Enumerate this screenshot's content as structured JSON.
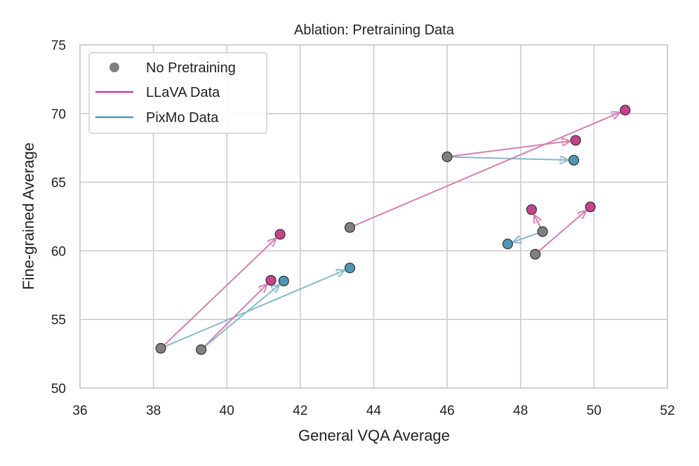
{
  "chart_data": {
    "type": "scatter",
    "title": "Ablation: Pretraining Data",
    "xlabel": "General VQA Average",
    "ylabel": "Fine-grained Average",
    "xlim": [
      36,
      52
    ],
    "ylim": [
      50,
      75
    ],
    "xticks": [
      36,
      38,
      40,
      42,
      44,
      46,
      48,
      50,
      52
    ],
    "yticks": [
      50,
      55,
      60,
      65,
      70,
      75
    ],
    "grid": true,
    "legend_position": "top-left",
    "colors": {
      "none": "#808080",
      "llava": "#c4438b",
      "pixmo": "#4f97b4",
      "llava_arrow": "#d57fb1",
      "pixmo_arrow": "#86b8cc"
    },
    "legend": [
      {
        "label": "No Pretraining",
        "kind": "marker",
        "color_key": "none"
      },
      {
        "label": "LLaVA Data",
        "kind": "line",
        "color_key": "llava"
      },
      {
        "label": "PixMo Data",
        "kind": "line",
        "color_key": "pixmo"
      }
    ],
    "groups": [
      {
        "base": [
          38.2,
          52.9
        ],
        "llava": [
          41.45,
          61.2
        ],
        "pixmo": [
          43.35,
          58.75
        ]
      },
      {
        "base": [
          39.3,
          52.8
        ],
        "llava": [
          41.2,
          57.85
        ],
        "pixmo": [
          41.55,
          57.8
        ]
      },
      {
        "base": [
          46.0,
          66.85
        ],
        "llava": [
          49.5,
          68.05
        ],
        "pixmo": [
          49.45,
          66.6
        ]
      },
      {
        "base": [
          43.35,
          61.7
        ],
        "llava": [
          50.85,
          70.25
        ]
      },
      {
        "base": [
          48.6,
          61.4
        ],
        "llava": [
          48.3,
          63.0
        ],
        "pixmo": [
          47.65,
          60.5
        ]
      },
      {
        "base": [
          48.4,
          59.75
        ],
        "llava": [
          49.9,
          63.2
        ]
      }
    ]
  }
}
